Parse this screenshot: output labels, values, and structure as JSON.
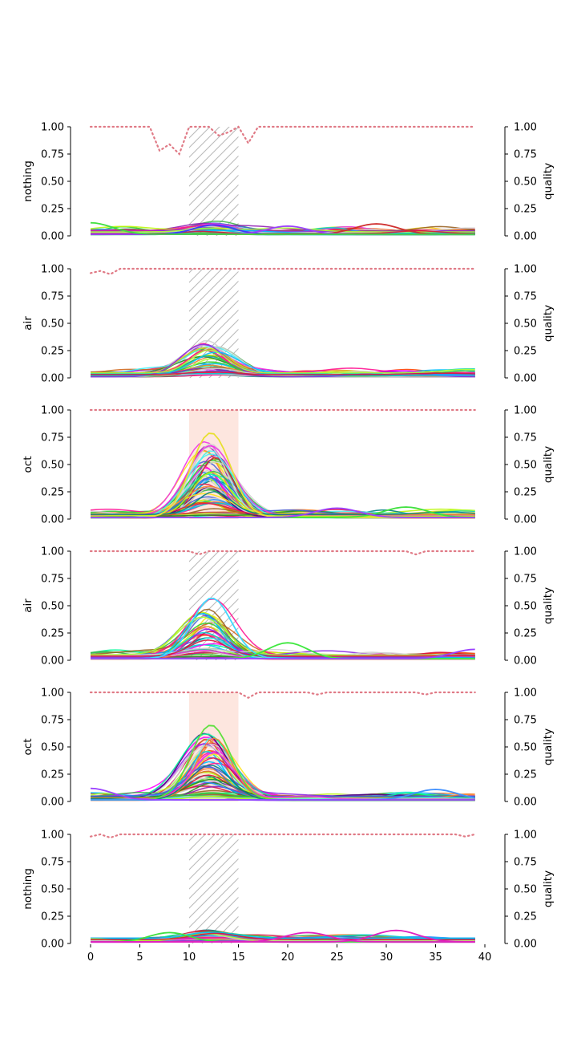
{
  "chart_data": {
    "type": "line",
    "x_axis": {
      "ticks": [
        0,
        5,
        10,
        15,
        20,
        25,
        30,
        35,
        40
      ],
      "xlim": [
        0,
        40
      ]
    },
    "y_ticks": [
      "0.00",
      "0.25",
      "0.50",
      "0.75",
      "1.00"
    ],
    "ylim": [
      0,
      1
    ],
    "right_axis_label": "quality",
    "panels": [
      {
        "label": "nothing",
        "stimulus": {
          "start": 10,
          "end": 15,
          "style": "hatched"
        },
        "quality_dips": [
          [
            7,
            0.78
          ],
          [
            8,
            0.84
          ],
          [
            9,
            0.75
          ],
          [
            10,
            1.0
          ],
          [
            13,
            0.92
          ],
          [
            14,
            0.95
          ],
          [
            16,
            0.85
          ]
        ],
        "peak_series": [
          {
            "center": 12.5,
            "height": 0.1,
            "color": "#3b3bff"
          },
          {
            "center": 29,
            "height": 0.11,
            "color": "#d03030"
          },
          {
            "center": 20,
            "height": 0.09,
            "color": "#9b40ff"
          },
          {
            "center": 0,
            "height": 0.12,
            "color": "#40e040"
          }
        ],
        "response_max": 0.12,
        "num_traces": 45
      },
      {
        "label": "air",
        "stimulus": {
          "start": 10,
          "end": 15,
          "style": "hatched"
        },
        "quality_dips": [
          [
            0,
            0.96
          ],
          [
            1,
            0.98
          ],
          [
            2,
            0.95
          ]
        ],
        "peak_series": [],
        "response_max": 0.34,
        "num_traces": 45
      },
      {
        "label": "oct",
        "stimulus": {
          "start": 10,
          "end": 15,
          "style": "shaded",
          "color": "#fde6df"
        },
        "quality_dips": [],
        "peak_series": [
          {
            "center": 12.2,
            "height": 0.79,
            "color": "#e8e030"
          },
          {
            "center": 32,
            "height": 0.11,
            "color": "#40e040"
          },
          {
            "center": 25,
            "height": 0.1,
            "color": "#9b40ff"
          }
        ],
        "response_max": 0.79,
        "num_traces": 60
      },
      {
        "label": "air",
        "stimulus": {
          "start": 10,
          "end": 15,
          "style": "hatched"
        },
        "quality_dips": [
          [
            11,
            0.97
          ],
          [
            33,
            0.97
          ]
        ],
        "peak_series": [
          {
            "center": 12.3,
            "height": 0.57,
            "color": "#40d8ff"
          },
          {
            "center": 20,
            "height": 0.16,
            "color": "#40e840"
          },
          {
            "center": 39,
            "height": 0.1,
            "color": "#9b40ff"
          }
        ],
        "response_max": 0.57,
        "num_traces": 45
      },
      {
        "label": "oct",
        "stimulus": {
          "start": 10,
          "end": 15,
          "style": "shaded",
          "color": "#fde6df"
        },
        "quality_dips": [
          [
            16,
            0.95
          ],
          [
            23,
            0.98
          ],
          [
            34,
            0.98
          ]
        ],
        "peak_series": [
          {
            "center": 12.2,
            "height": 0.7,
            "color": "#60e040"
          },
          {
            "center": 35,
            "height": 0.11,
            "color": "#4090ff"
          },
          {
            "center": 0,
            "height": 0.12,
            "color": "#9b40ff"
          }
        ],
        "response_max": 0.7,
        "num_traces": 60
      },
      {
        "label": "nothing",
        "stimulus": {
          "start": 10,
          "end": 15,
          "style": "hatched"
        },
        "quality_dips": [
          [
            0,
            0.98
          ],
          [
            2,
            0.97
          ],
          [
            38,
            0.98
          ]
        ],
        "peak_series": [
          {
            "center": 8,
            "height": 0.1,
            "color": "#40e040"
          },
          {
            "center": 31,
            "height": 0.12,
            "color": "#e020c0"
          },
          {
            "center": 22,
            "height": 0.1,
            "color": "#e020c0"
          }
        ],
        "response_max": 0.12,
        "num_traces": 45
      }
    ],
    "colors": {
      "quality_line": "#e07a86",
      "hatch": "#bbbbbb",
      "palette": [
        "#e6194b",
        "#3cb44b",
        "#ffe119",
        "#4363d8",
        "#f58231",
        "#911eb4",
        "#46f0f0",
        "#f032e6",
        "#bcf60c",
        "#008080",
        "#9a6324",
        "#1e90ff",
        "#ff1493",
        "#00ced1",
        "#32cd32",
        "#8a2be2",
        "#ff4500",
        "#00bfff",
        "#adff2f",
        "#dc143c",
        "#4b0082",
        "#00fa9a",
        "#d2691e",
        "#ff00ff",
        "#228b22"
      ]
    }
  }
}
